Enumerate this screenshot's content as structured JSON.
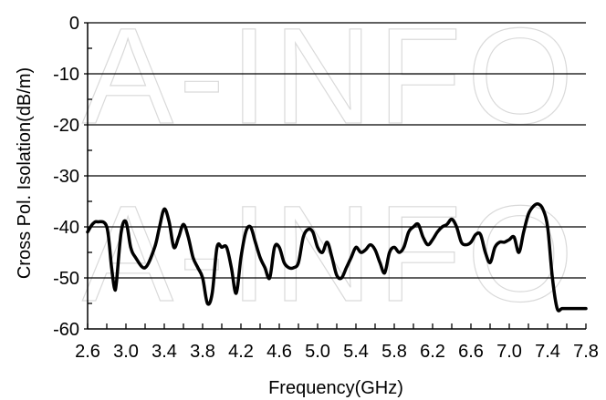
{
  "chart_data": {
    "type": "line",
    "xlabel": "Frequency(GHz)",
    "ylabel": "Cross Pol. Isolation(dB/m)",
    "xlim": [
      2.6,
      7.8
    ],
    "ylim": [
      -60,
      0
    ],
    "x_ticks": [
      "2.6",
      "3.0",
      "3.4",
      "3.8",
      "4.2",
      "4.6",
      "5.0",
      "5.4",
      "5.8",
      "6.2",
      "6.6",
      "7.0",
      "7.4",
      "7.8"
    ],
    "y_ticks": [
      "0",
      "-10",
      "-20",
      "-30",
      "-40",
      "-50",
      "-60"
    ],
    "grid": "horizontal",
    "line_color": "#000000",
    "watermark_text": "A-INFO",
    "series": [
      {
        "x": [
          2.6,
          2.65,
          2.7,
          2.8,
          2.85,
          2.88,
          2.9,
          2.95,
          3.0,
          3.05,
          3.1,
          3.2,
          3.3,
          3.35,
          3.4,
          3.45,
          3.5,
          3.55,
          3.6,
          3.65,
          3.7,
          3.75,
          3.8,
          3.85,
          3.9,
          3.95,
          4.0,
          4.05,
          4.1,
          4.15,
          4.2,
          4.25,
          4.3,
          4.35,
          4.4,
          4.45,
          4.5,
          4.55,
          4.6,
          4.65,
          4.7,
          4.75,
          4.8,
          4.85,
          4.9,
          4.95,
          5.0,
          5.05,
          5.1,
          5.15,
          5.2,
          5.25,
          5.3,
          5.35,
          5.4,
          5.45,
          5.5,
          5.55,
          5.6,
          5.65,
          5.7,
          5.75,
          5.8,
          5.85,
          5.9,
          5.95,
          6.0,
          6.05,
          6.1,
          6.15,
          6.2,
          6.25,
          6.3,
          6.35,
          6.4,
          6.45,
          6.5,
          6.55,
          6.6,
          6.65,
          6.7,
          6.75,
          6.8,
          6.85,
          6.9,
          6.95,
          7.0,
          7.05,
          7.1,
          7.15,
          7.2,
          7.25,
          7.3,
          7.35,
          7.4,
          7.45,
          7.5,
          7.55,
          7.6,
          7.65,
          7.7,
          7.75,
          7.8
        ],
        "y": [
          -41,
          -39.5,
          -39,
          -40,
          -48,
          -52,
          -51,
          -41,
          -39,
          -44,
          -46,
          -48,
          -44,
          -40,
          -36.5,
          -39,
          -44,
          -42,
          -39.5,
          -42,
          -46,
          -48,
          -50,
          -55,
          -53,
          -44,
          -44,
          -44,
          -48,
          -53,
          -46,
          -41,
          -40,
          -43,
          -46,
          -48,
          -50,
          -44,
          -44,
          -47,
          -48,
          -48,
          -47,
          -42,
          -40.5,
          -41,
          -44,
          -45,
          -43,
          -46,
          -49.5,
          -50,
          -48,
          -46,
          -44,
          -45,
          -44.5,
          -43.5,
          -44.5,
          -47,
          -49,
          -45,
          -44,
          -45,
          -44,
          -41,
          -40,
          -39.5,
          -42,
          -43.5,
          -42.5,
          -41,
          -40,
          -39.5,
          -38.5,
          -40,
          -43,
          -43.5,
          -43,
          -41.5,
          -41.5,
          -45,
          -47,
          -44,
          -43,
          -43,
          -42.5,
          -42,
          -45,
          -41,
          -37.5,
          -36,
          -35.5,
          -36.5,
          -40,
          -50,
          -56,
          -56,
          -56,
          -56,
          -56,
          -56,
          -56
        ]
      }
    ]
  }
}
